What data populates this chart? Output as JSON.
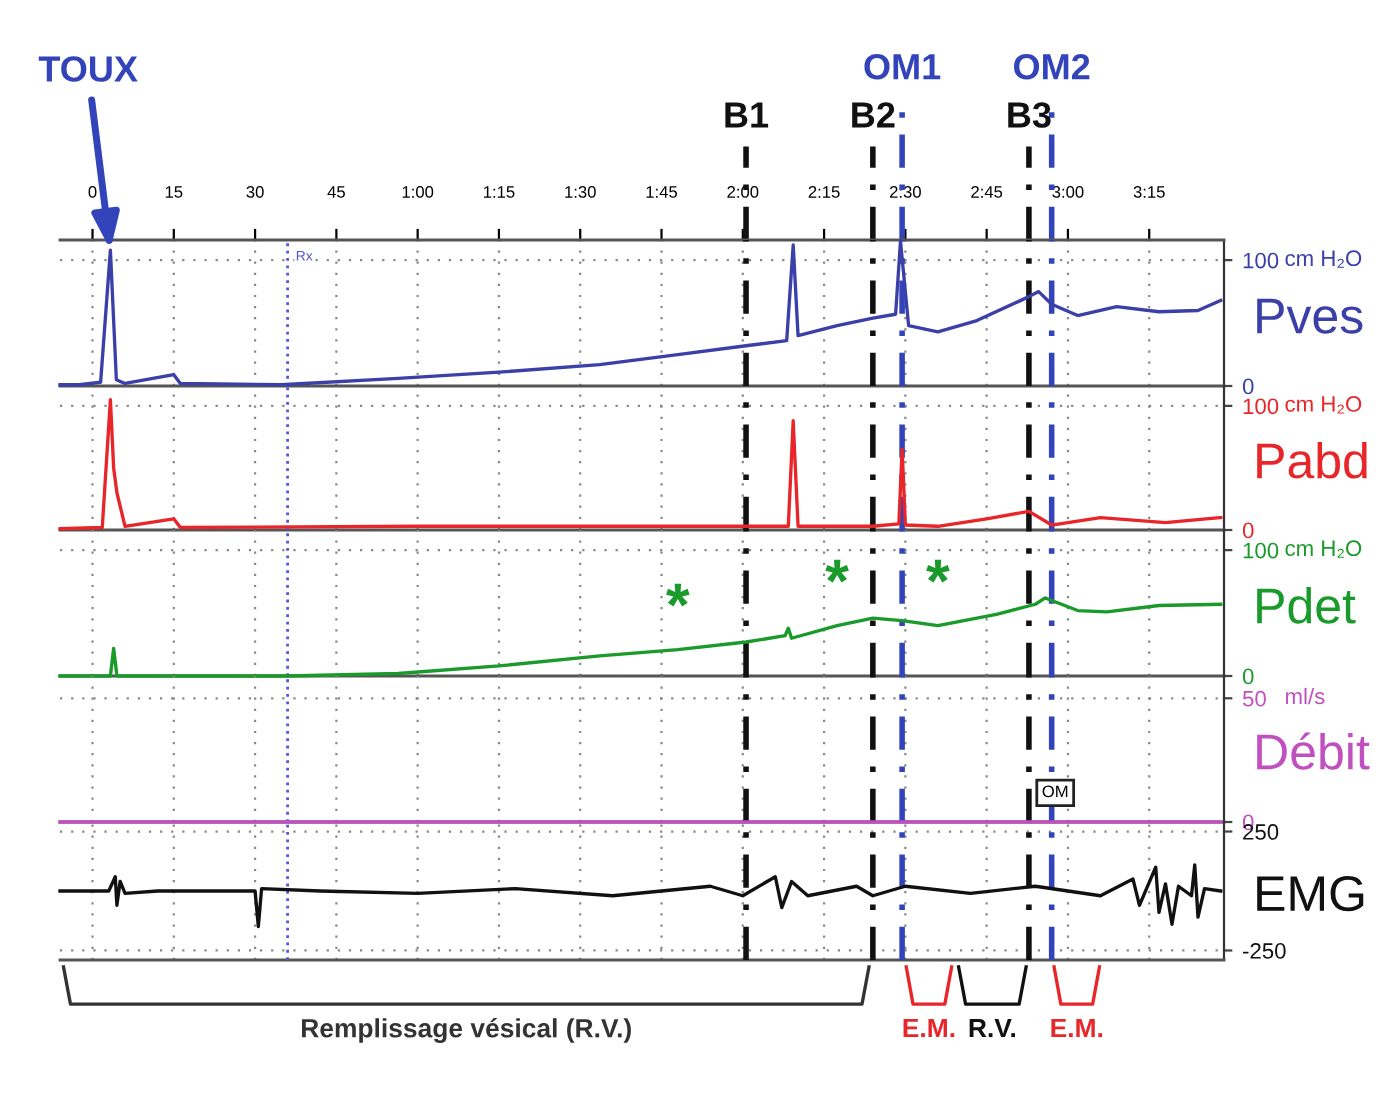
{
  "chart_data": [
    {
      "type": "line",
      "series": [
        {
          "name": "Pves",
          "color": "#3b3fa8",
          "x": [
            -6,
            -2.4,
            1.5,
            3.3,
            4.4,
            6,
            15,
            16.2,
            34.8,
            56.4,
            75,
            93.6,
            108,
            120.6,
            128.1,
            129.3,
            130.2,
            137.4,
            144,
            148.2,
            149.1,
            150.6,
            156,
            163.2,
            172.8,
            174.6,
            177,
            181.8,
            189,
            196.8,
            204,
            208.2
          ],
          "values": [
            1,
            1,
            3,
            108,
            5,
            2,
            9,
            2,
            1,
            6,
            11,
            17,
            25,
            32,
            36,
            112,
            40,
            48,
            54,
            57,
            115,
            48,
            43,
            52,
            71,
            75,
            65,
            56,
            63,
            59,
            60,
            68
          ]
        }
      ],
      "xlim": [
        -6,
        208.8
      ],
      "ylabel": "cm H₂O",
      "xticks": [
        0,
        15,
        30,
        45,
        {
          "value": 60,
          "label": "1:00"
        },
        {
          "value": 75,
          "label": "1:15"
        },
        {
          "value": 90,
          "label": "1:30"
        },
        {
          "value": 105,
          "label": "1:45"
        },
        {
          "value": 120,
          "label": "2:00"
        },
        {
          "value": 135,
          "label": "2:15"
        },
        {
          "value": 150,
          "label": "2:30"
        },
        {
          "value": 165,
          "label": "2:45"
        },
        {
          "value": 180,
          "label": "3:00"
        },
        {
          "value": 195,
          "label": "3:15"
        }
      ],
      "ylim": [
        0,
        116
      ],
      "yticks": [
        100,
        0
      ],
      "grid": true,
      "ref_lines": [
        {
          "axis": "x",
          "value": 36,
          "label": "Rx",
          "color": "#5555dd",
          "line_style": "dotted"
        },
        {
          "axis": "x",
          "value": 120.6,
          "label": "B1",
          "color": "#111111",
          "line_style": "dashed"
        },
        {
          "axis": "x",
          "value": 144,
          "label": "B2",
          "color": "#111111",
          "line_style": "dashed"
        },
        {
          "axis": "x",
          "value": 149.4,
          "label": "OM1",
          "color": "#3344bb",
          "line_style": "dashed"
        },
        {
          "axis": "x",
          "value": 172.8,
          "label": "B3",
          "color": "#111111",
          "line_style": "dashed"
        },
        {
          "axis": "x",
          "value": 177,
          "label": "OM2",
          "color": "#3344bb",
          "line_style": "dashed"
        }
      ],
      "annotations": [
        {
          "text": "TOUX",
          "x": 3.3,
          "y": 108
        }
      ]
    },
    {
      "type": "line",
      "series": [
        {
          "name": "Pabd",
          "color": "#e8262a",
          "x": [
            -6,
            1.8,
            3.3,
            3.9,
            4.5,
            6,
            15,
            16.2,
            60,
            126,
            128.4,
            129.3,
            130.2,
            144,
            148.8,
            149.4,
            150,
            156,
            165,
            172.8,
            177,
            186,
            198,
            208.2
          ],
          "values": [
            1,
            2,
            105,
            50,
            30,
            3,
            9,
            2,
            3,
            3,
            3,
            88,
            3,
            3,
            5,
            65,
            4,
            3,
            9,
            15,
            4,
            10,
            6,
            10
          ]
        }
      ],
      "xlim": [
        -6,
        208.8
      ],
      "xticks": [
        0,
        15,
        30,
        45,
        60,
        75,
        90,
        105,
        120,
        135,
        150,
        165,
        180,
        195
      ],
      "ylim": [
        0,
        116
      ],
      "yticks": [
        100,
        0
      ],
      "ylabel": "cm H₂O",
      "grid": true,
      "tick_labels": "y",
      "ref_lines": [
        {
          "axis": "x",
          "value": 36,
          "color": "#5555dd",
          "line_style": "dotted"
        },
        {
          "axis": "x",
          "value": 120.6,
          "color": "#111111",
          "line_style": "dashed"
        },
        {
          "axis": "x",
          "value": 144,
          "color": "#111111",
          "line_style": "dashed"
        },
        {
          "axis": "x",
          "value": 149.4,
          "color": "#3344bb",
          "line_style": "dashed"
        },
        {
          "axis": "x",
          "value": 172.8,
          "color": "#111111",
          "line_style": "dashed"
        },
        {
          "axis": "x",
          "value": 177,
          "color": "#3344bb",
          "line_style": "dashed"
        }
      ]
    },
    {
      "type": "line",
      "series": [
        {
          "name": "Pdet",
          "color": "#1a9a2a",
          "x": [
            -6,
            3.3,
            3.9,
            4.5,
            6,
            36,
            56.4,
            75,
            93.6,
            108,
            120.6,
            127.8,
            128.4,
            129,
            137.4,
            144,
            149.4,
            156,
            166.8,
            174,
            175.8,
            181.8,
            187.2,
            196.8,
            208.2
          ],
          "values": [
            0,
            0,
            22,
            0,
            0,
            0,
            2,
            8,
            16,
            21,
            27,
            32,
            38,
            30,
            40,
            46,
            44,
            40,
            49,
            57,
            62,
            52,
            51,
            56,
            57
          ]
        }
      ],
      "xlim": [
        -6,
        208.8
      ],
      "xticks": [
        0,
        15,
        30,
        45,
        60,
        75,
        90,
        105,
        120,
        135,
        150,
        165,
        180,
        195
      ],
      "ylim": [
        0,
        116
      ],
      "yticks": [
        100,
        0
      ],
      "ylabel": "cm H₂O",
      "grid": true,
      "tick_labels": "y",
      "ref_lines": [
        {
          "axis": "x",
          "value": 36,
          "color": "#5555dd",
          "line_style": "dotted"
        },
        {
          "axis": "x",
          "value": 120.6,
          "color": "#111111",
          "line_style": "dashed"
        },
        {
          "axis": "x",
          "value": 144,
          "color": "#111111",
          "line_style": "dashed"
        },
        {
          "axis": "x",
          "value": 149.4,
          "color": "#3344bb",
          "line_style": "dashed"
        },
        {
          "axis": "x",
          "value": 172.8,
          "color": "#111111",
          "line_style": "dashed"
        },
        {
          "axis": "x",
          "value": 177,
          "color": "#3344bb",
          "line_style": "dashed"
        }
      ],
      "annotations": [
        {
          "text": "*",
          "x": 108,
          "y": 21
        },
        {
          "text": "*",
          "x": 137.4,
          "y": 40
        },
        {
          "text": "*",
          "x": 156,
          "y": 40
        }
      ]
    },
    {
      "type": "line",
      "series": [
        {
          "name": "Débit",
          "color": "#c050c0",
          "x": [
            -6,
            208.2
          ],
          "values": [
            0,
            0
          ]
        }
      ],
      "xlim": [
        -6,
        208.8
      ],
      "xticks": [
        0,
        15,
        30,
        45,
        60,
        75,
        90,
        105,
        120,
        135,
        150,
        165,
        180,
        195
      ],
      "ylim": [
        0,
        59
      ],
      "yticks": [
        50,
        0
      ],
      "ylabel": "ml/s",
      "grid": true,
      "tick_labels": "y",
      "ref_lines": [
        {
          "axis": "x",
          "value": 36,
          "color": "#5555dd",
          "line_style": "dotted"
        },
        {
          "axis": "x",
          "value": 120.6,
          "color": "#111111",
          "line_style": "dashed"
        },
        {
          "axis": "x",
          "value": 144,
          "color": "#111111",
          "line_style": "dashed"
        },
        {
          "axis": "x",
          "value": 149.4,
          "color": "#3344bb",
          "line_style": "dashed"
        },
        {
          "axis": "x",
          "value": 172.8,
          "color": "#111111",
          "line_style": "dashed"
        },
        {
          "axis": "x",
          "value": 177,
          "color": "#3344bb",
          "line_style": "dashed"
        }
      ],
      "annotations": [
        "OM"
      ]
    },
    {
      "type": "line",
      "series": [
        {
          "name": "EMG",
          "color": "#111111",
          "x": [
            -6,
            0,
            3,
            4.2,
            4.5,
            5.1,
            6,
            12,
            24,
            30,
            30.6,
            31.2,
            42,
            60,
            78,
            96,
            114,
            120,
            126,
            127.2,
            129,
            132,
            141,
            144,
            150,
            162,
            174,
            186,
            192,
            193.2,
            196.2,
            196.8,
            198,
            199.2,
            200.4,
            202.8,
            203.4,
            204,
            205.2,
            208.2
          ],
          "values": [
            0,
            0,
            0,
            60,
            -60,
            40,
            -10,
            0,
            0,
            0,
            -150,
            10,
            0,
            -10,
            10,
            -20,
            20,
            -20,
            60,
            -70,
            40,
            -20,
            20,
            -20,
            20,
            -10,
            20,
            -20,
            50,
            -60,
            100,
            -90,
            30,
            -140,
            20,
            -20,
            110,
            -110,
            10,
            0
          ]
        }
      ],
      "xlim": [
        -6,
        208.8
      ],
      "xticks": [
        0,
        15,
        30,
        45,
        60,
        75,
        90,
        105,
        120,
        135,
        150,
        165,
        180,
        195
      ],
      "ylim": [
        -290,
        290
      ],
      "yticks": [
        250,
        -250
      ],
      "grid": true,
      "tick_labels": "y",
      "ref_lines": [
        {
          "axis": "x",
          "value": 36,
          "color": "#5555dd",
          "line_style": "dotted"
        },
        {
          "axis": "x",
          "value": 120.6,
          "color": "#111111",
          "line_style": "dashed"
        },
        {
          "axis": "x",
          "value": 144,
          "color": "#111111",
          "line_style": "dashed"
        },
        {
          "axis": "x",
          "value": 149.4,
          "color": "#3344bb",
          "line_style": "dashed"
        },
        {
          "axis": "x",
          "value": 172.8,
          "color": "#111111",
          "line_style": "dashed"
        },
        {
          "axis": "x",
          "value": 177,
          "color": "#3344bb",
          "line_style": "dashed"
        }
      ],
      "annotations": [
        "Remplissage vésical (R.V.)",
        "E.M.",
        "R.V.",
        "E.M."
      ]
    }
  ]
}
